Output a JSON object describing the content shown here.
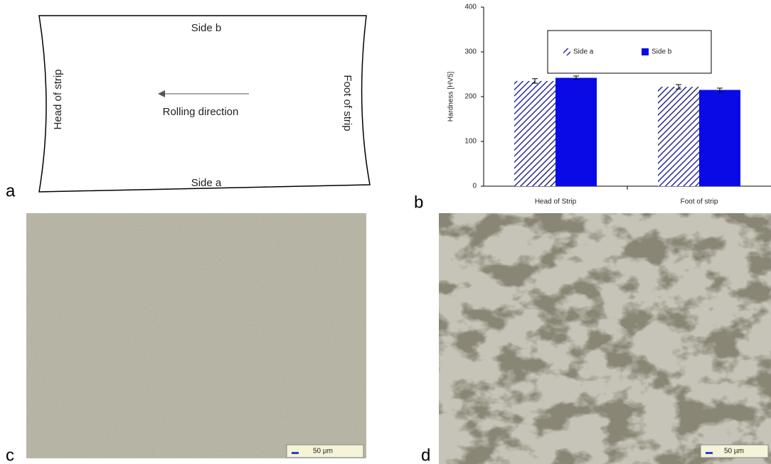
{
  "panel_labels": [
    "a",
    "b",
    "c",
    "d"
  ],
  "diagram": {
    "top": "Side b",
    "bottom": "Side a",
    "left": "Head of strip",
    "right": "Foot of strip",
    "direction": "Rolling direction"
  },
  "chart_data": {
    "type": "bar",
    "y_label": "Hardness [HV5]",
    "categories": [
      "Head of Strip",
      "Foot of strip"
    ],
    "series": [
      {
        "name": "Side a",
        "color": "#2a2a9a",
        "hatch": true,
        "values": [
          235,
          222
        ],
        "errors": [
          5,
          5
        ]
      },
      {
        "name": "Side b",
        "color": "#0a0ae6",
        "hatch": false,
        "values": [
          242,
          215
        ],
        "errors": [
          4,
          4
        ]
      }
    ],
    "ylim": [
      0,
      400
    ],
    "yticks": [
      0,
      100,
      200,
      300,
      400
    ],
    "grid": false
  },
  "micrographs": [
    {
      "scale_bar": "50 µm"
    },
    {
      "scale_bar": "50 µm"
    }
  ]
}
